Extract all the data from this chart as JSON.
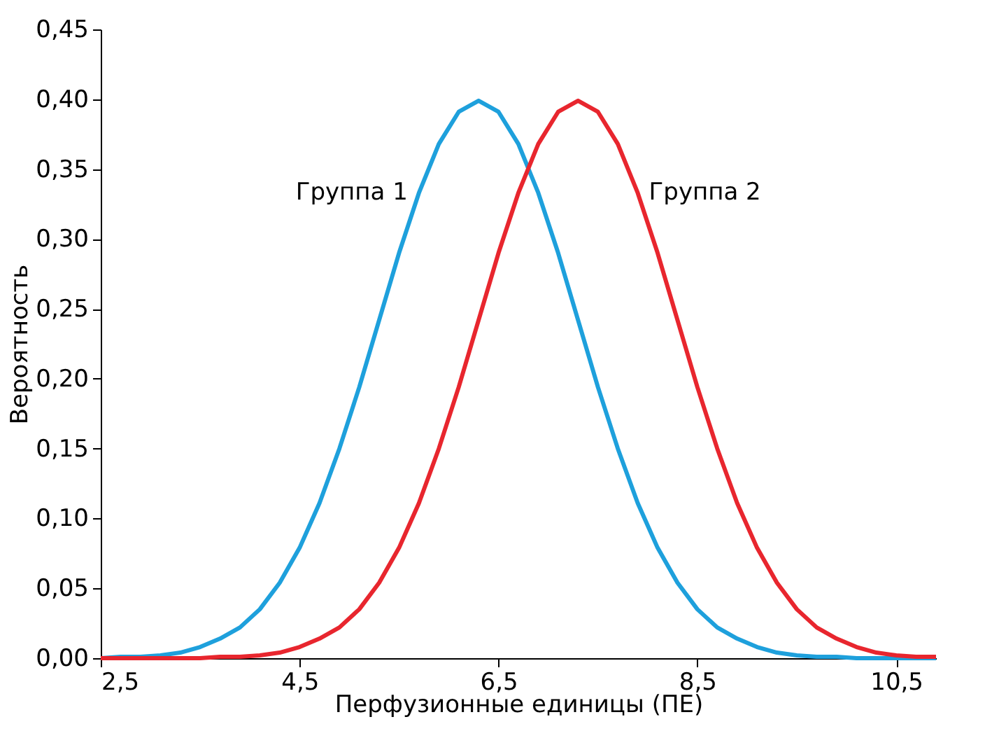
{
  "chart_data": {
    "type": "line",
    "xlabel": "Перфузионные единицы (ПЕ)",
    "ylabel": "Вероятность",
    "x": [
      2.5,
      2.7,
      2.9,
      3.1,
      3.3,
      3.5,
      3.7,
      3.9,
      4.1,
      4.3,
      4.5,
      4.7,
      4.9,
      5.1,
      5.3,
      5.5,
      5.7,
      5.9,
      6.1,
      6.3,
      6.5,
      6.7,
      6.9,
      7.1,
      7.3,
      7.5,
      7.7,
      7.9,
      8.1,
      8.3,
      8.5,
      8.7,
      8.9,
      9.1,
      9.3,
      9.5,
      9.7,
      9.9,
      10.1,
      10.3,
      10.5,
      10.7,
      10.9
    ],
    "series": [
      {
        "name": "Группа 1",
        "color": "#1ea0dc",
        "values": [
          0.0,
          0.001,
          0.001,
          0.002,
          0.004,
          0.008,
          0.014,
          0.022,
          0.035,
          0.054,
          0.079,
          0.111,
          0.15,
          0.194,
          0.242,
          0.29,
          0.333,
          0.368,
          0.391,
          0.399,
          0.391,
          0.368,
          0.333,
          0.29,
          0.242,
          0.194,
          0.15,
          0.111,
          0.079,
          0.054,
          0.035,
          0.022,
          0.014,
          0.008,
          0.004,
          0.002,
          0.001,
          0.001,
          0.0,
          0.0,
          0.0,
          0.0,
          0.0
        ]
      },
      {
        "name": "Группа 2",
        "color": "#e8262e",
        "values": [
          0.0,
          0.0,
          0.0,
          0.0,
          0.0,
          0.0,
          0.001,
          0.001,
          0.002,
          0.004,
          0.008,
          0.014,
          0.022,
          0.035,
          0.054,
          0.079,
          0.111,
          0.15,
          0.194,
          0.242,
          0.29,
          0.333,
          0.368,
          0.391,
          0.399,
          0.391,
          0.368,
          0.333,
          0.29,
          0.242,
          0.194,
          0.15,
          0.111,
          0.079,
          0.054,
          0.035,
          0.022,
          0.014,
          0.008,
          0.004,
          0.002,
          0.001,
          0.001
        ]
      }
    ],
    "xlim": [
      2.5,
      10.9
    ],
    "xticks": [
      {
        "value": 2.5,
        "label": "2,5"
      },
      {
        "value": 4.5,
        "label": "4,5"
      },
      {
        "value": 6.5,
        "label": "6,5"
      },
      {
        "value": 8.5,
        "label": "8,5"
      },
      {
        "value": 10.5,
        "label": "10,5"
      }
    ],
    "ylim": [
      0,
      0.45
    ],
    "yticks": [
      {
        "value": 0,
        "label": "0,00"
      },
      {
        "value": 0.05,
        "label": "0,05"
      },
      {
        "value": 0.1,
        "label": "0,10"
      },
      {
        "value": 0.15,
        "label": "0,15"
      },
      {
        "value": 0.2,
        "label": "0,20"
      },
      {
        "value": 0.25,
        "label": "0,25"
      },
      {
        "value": 0.3,
        "label": "0,30"
      },
      {
        "value": 0.35,
        "label": "0,35"
      },
      {
        "value": 0.4,
        "label": "0,40"
      },
      {
        "value": 0.45,
        "label": "0,45"
      }
    ],
    "grid": false,
    "legend": false,
    "marker": "none",
    "line_style": "solid"
  }
}
